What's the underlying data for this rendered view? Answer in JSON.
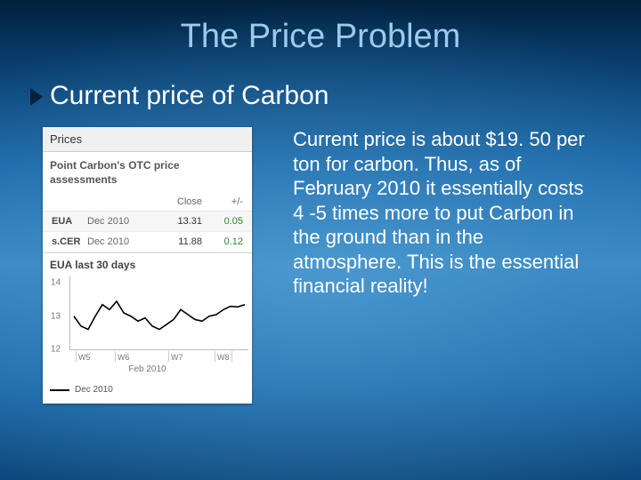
{
  "title": "The Price Problem",
  "bullet": "Current price of Carbon",
  "paragraph": "Current price is about $19. 50 per ton for carbon. Thus, as of February 2010 it essentially costs 4 -5 times more to put Carbon in the ground than in the atmosphere.  This is the essential financial reality!",
  "widget": {
    "heading": "Prices",
    "subtitle1": "Point Carbon's OTC price",
    "subtitle2": "assessments",
    "col_close": "Close",
    "col_delta": "+/-",
    "rows": [
      {
        "sym": "EUA",
        "period": "Dec 2010",
        "close": "13.31",
        "delta": "0.05"
      },
      {
        "sym": "s.CER",
        "period": "Dec 2010",
        "close": "11.88",
        "delta": "0.12"
      }
    ],
    "chart": {
      "title": "EUA last 30 days",
      "yticks": [
        {
          "v": 14,
          "label": "14"
        },
        {
          "v": 13,
          "label": "13"
        },
        {
          "v": 12,
          "label": "12"
        }
      ],
      "ylim": [
        12,
        14.2
      ],
      "xticks": [
        {
          "pos": 0.03,
          "label": "W5"
        },
        {
          "pos": 0.25,
          "label": "W6"
        },
        {
          "pos": 0.55,
          "label": "W7"
        },
        {
          "pos": 0.81,
          "label": "W8"
        }
      ],
      "line_color": "#000000",
      "line_width": 1.6,
      "series": [
        [
          0.02,
          13.0
        ],
        [
          0.06,
          12.7
        ],
        [
          0.1,
          12.6
        ],
        [
          0.14,
          13.0
        ],
        [
          0.18,
          13.35
        ],
        [
          0.22,
          13.2
        ],
        [
          0.26,
          13.45
        ],
        [
          0.3,
          13.1
        ],
        [
          0.34,
          13.0
        ],
        [
          0.38,
          12.85
        ],
        [
          0.42,
          12.95
        ],
        [
          0.46,
          12.7
        ],
        [
          0.5,
          12.6
        ],
        [
          0.54,
          12.75
        ],
        [
          0.58,
          12.9
        ],
        [
          0.62,
          13.2
        ],
        [
          0.66,
          13.05
        ],
        [
          0.7,
          12.9
        ],
        [
          0.74,
          12.85
        ],
        [
          0.78,
          13.0
        ],
        [
          0.82,
          13.05
        ],
        [
          0.86,
          13.2
        ],
        [
          0.9,
          13.3
        ],
        [
          0.94,
          13.28
        ],
        [
          0.98,
          13.35
        ]
      ],
      "footer": "Feb 2010",
      "legend": "Dec 2010"
    }
  },
  "colors": {
    "title": "#9fc9ec",
    "arrow": "#05213c",
    "positive": "#2b8a2b"
  }
}
